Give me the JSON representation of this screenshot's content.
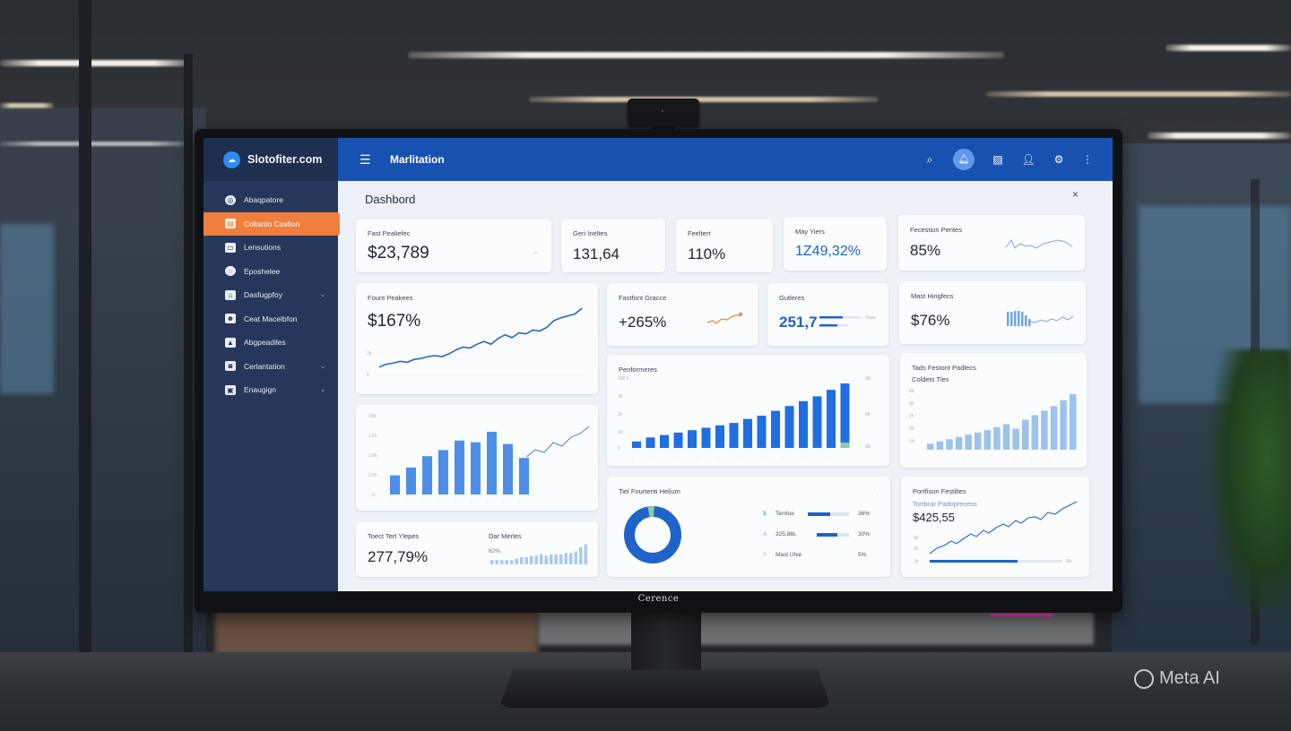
{
  "watermark": {
    "label": "Meta AI",
    "icon": "ring-icon"
  },
  "monitor": {
    "brand": "Cerence"
  },
  "sidebar": {
    "brand": "Slotofiter.com",
    "items": [
      {
        "label": "Abaqpatore",
        "icon": "globe-icon",
        "chevron": false,
        "active": false
      },
      {
        "label": "Coltanlo Cosfion",
        "icon": "folder-icon",
        "chevron": false,
        "active": true
      },
      {
        "label": "Lensutions",
        "icon": "inbox-icon",
        "chevron": false,
        "active": false
      },
      {
        "label": "Eposhelee",
        "icon": "settings-icon",
        "chevron": false,
        "active": false
      },
      {
        "label": "Dasfugpfoy",
        "icon": "home-icon",
        "chevron": true,
        "active": false
      },
      {
        "label": "Ceat Macelbfon",
        "icon": "user-icon",
        "chevron": false,
        "active": false
      },
      {
        "label": "Abgpeadiles",
        "icon": "image-icon",
        "chevron": false,
        "active": false
      },
      {
        "label": "Cerlantation",
        "icon": "camera-icon",
        "chevron": true,
        "active": false
      },
      {
        "label": "Enaugign",
        "icon": "message-icon",
        "chevron": true,
        "active": false
      }
    ]
  },
  "topbar": {
    "title": "Marlitation",
    "icons": [
      "search-icon",
      "bell-icon",
      "image-icon",
      "user-icon",
      "gear-icon",
      "more-icon"
    ]
  },
  "main": {
    "title": "Dashbord",
    "close": "×",
    "cards": {
      "kpi1": {
        "label": "Fast Pealiefec",
        "value": "$23,789"
      },
      "kpi2": {
        "label": "Geri Ineltes",
        "value": "131,64"
      },
      "kpi3": {
        "label": "Feeltert",
        "value": "110%"
      },
      "kpi4": {
        "label": "May Yiers",
        "value": "1Z49,32%"
      },
      "kpi5": {
        "label": "Fecestion Pentes",
        "value": "85%"
      },
      "line1": {
        "label": "Fount Peakees",
        "value": "$167%"
      },
      "kpi6": {
        "label": "Fastfont Gracce",
        "value": "+265%"
      },
      "kpi7": {
        "label": "Gutleres",
        "value": "251,7"
      },
      "kpi8": {
        "label": "Mast Hingfecs",
        "value": "$76%"
      },
      "perf": {
        "label": "Penformeres"
      },
      "trend": {
        "label": "Tads Festont Padlecs",
        "sublabel": "Coldets Tles"
      },
      "total": {
        "label": "Toect Tert Ylepes",
        "value": "277,79%",
        "mini_label": "Dar Merles",
        "mini_value": "62%"
      },
      "donut": {
        "label": "Tiel Fourtenti Helium",
        "rows": [
          {
            "marker": "1",
            "label": "Tentloe",
            "pct": "36%",
            "fill": 0.55
          },
          {
            "marker": "A",
            "label": "325,86L",
            "pct": "30%",
            "fill": 0.65
          },
          {
            "marker": "3",
            "label": "Mast Uhie",
            "pct": "5%",
            "fill": 0
          }
        ]
      },
      "portfolio": {
        "label": "Portfison Festiltes",
        "sublabel": "Tortbrar Padoprecess",
        "value": "$425,55"
      }
    }
  },
  "chart_data": [
    {
      "type": "line",
      "title": "Fount Peakees",
      "x": [
        1,
        2,
        3,
        4,
        5,
        6,
        7,
        8,
        9,
        10,
        11,
        12,
        13,
        14,
        15,
        16,
        17,
        18,
        19,
        20,
        21,
        22,
        23,
        24,
        25,
        26,
        27,
        28,
        29,
        30
      ],
      "values": [
        6,
        9,
        10,
        12,
        11,
        14,
        15,
        17,
        18,
        17,
        20,
        24,
        27,
        26,
        30,
        33,
        30,
        36,
        40,
        37,
        42,
        41,
        45,
        44,
        48,
        55,
        58,
        60,
        62,
        68
      ]
    },
    {
      "type": "bar",
      "title": "Penformeres",
      "values": [
        8,
        13,
        16,
        19,
        22,
        25,
        28,
        31,
        36,
        40,
        46,
        52,
        58,
        64,
        72,
        80
      ]
    },
    {
      "type": "bar",
      "title": "Tads Festont Padlecs",
      "values": [
        8,
        11,
        14,
        17,
        20,
        23,
        26,
        30,
        34,
        28,
        40,
        46,
        52,
        58,
        66,
        74
      ]
    },
    {
      "type": "bar",
      "title": "Monthly bars",
      "values": [
        22,
        31,
        44,
        51,
        62,
        60,
        72,
        58,
        42
      ],
      "overlay_line": [
        42,
        50,
        47,
        58,
        54,
        64,
        68,
        76
      ]
    },
    {
      "type": "pie",
      "title": "Tiel Fourtenti Helium",
      "values": [
        96,
        4
      ]
    }
  ]
}
